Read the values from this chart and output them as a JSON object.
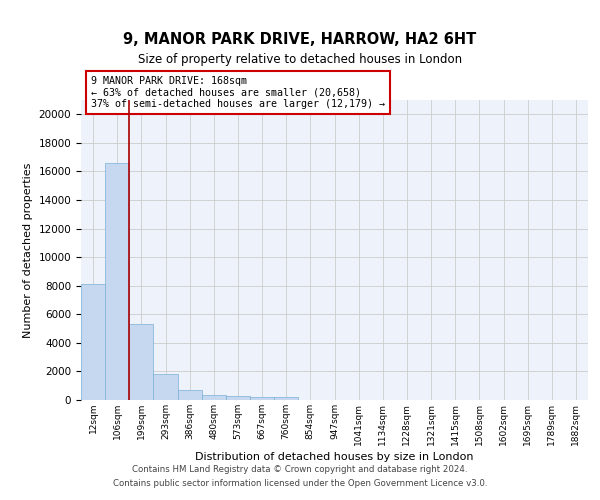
{
  "title": "9, MANOR PARK DRIVE, HARROW, HA2 6HT",
  "subtitle": "Size of property relative to detached houses in London",
  "xlabel": "Distribution of detached houses by size in London",
  "ylabel": "Number of detached properties",
  "bar_color": "#c5d8f0",
  "bar_edge_color": "#7ab0d8",
  "categories": [
    "12sqm",
    "106sqm",
    "199sqm",
    "293sqm",
    "386sqm",
    "480sqm",
    "573sqm",
    "667sqm",
    "760sqm",
    "854sqm",
    "947sqm",
    "1041sqm",
    "1134sqm",
    "1228sqm",
    "1321sqm",
    "1415sqm",
    "1508sqm",
    "1602sqm",
    "1695sqm",
    "1789sqm",
    "1882sqm"
  ],
  "values": [
    8100,
    16600,
    5300,
    1850,
    700,
    360,
    280,
    180,
    180,
    0,
    0,
    0,
    0,
    0,
    0,
    0,
    0,
    0,
    0,
    0,
    0
  ],
  "red_line_x": 1.97,
  "annotation_line1": "9 MANOR PARK DRIVE: 168sqm",
  "annotation_line2": "← 63% of detached houses are smaller (20,658)",
  "annotation_line3": "37% of semi-detached houses are larger (12,179) →",
  "annotation_box_color": "#ffffff",
  "annotation_box_edge_color": "#cc0000",
  "vline_color": "#aa0000",
  "ylim": [
    0,
    21000
  ],
  "yticks": [
    0,
    2000,
    4000,
    6000,
    8000,
    10000,
    12000,
    14000,
    16000,
    18000,
    20000
  ],
  "grid_color": "#cccccc",
  "background_color": "#eef2fa",
  "footer_line1": "Contains HM Land Registry data © Crown copyright and database right 2024.",
  "footer_line2": "Contains public sector information licensed under the Open Government Licence v3.0."
}
